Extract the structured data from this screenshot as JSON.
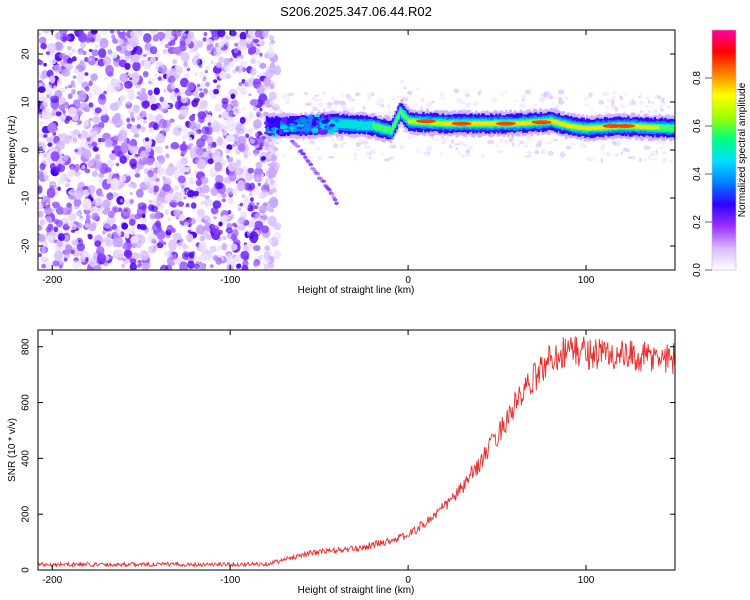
{
  "figure_title": "S206.2025.347.06.44.R02",
  "chart_data": [
    {
      "type": "heatmap",
      "xlabel": "Height of straight line (km)",
      "ylabel": "Frequency (Hz)",
      "xlim": [
        -208,
        150
      ],
      "ylim": [
        -25,
        25
      ],
      "xticks": [
        -200,
        -100,
        0,
        100
      ],
      "yticks": [
        -20,
        -10,
        0,
        10,
        20
      ],
      "colorbar": {
        "label": "Normalized spectral amplitude",
        "range": [
          0,
          1
        ],
        "ticks": [
          "0.0",
          "0.2",
          "0.4",
          "0.6",
          "0.8"
        ],
        "colors": [
          "#ffffff",
          "#d9b8ff",
          "#9b30ff",
          "#3000ff",
          "#0080ff",
          "#00e0ff",
          "#00ff80",
          "#a0ff00",
          "#ffff00",
          "#ff8000",
          "#ff0000",
          "#ff00a0"
        ]
      },
      "ridge": {
        "x": [
          -80,
          -60,
          -40,
          -20,
          -10,
          -5,
          0,
          20,
          40,
          60,
          80,
          90,
          100,
          120,
          150
        ],
        "freq_hz": [
          5,
          5,
          5.5,
          5,
          4,
          8,
          6,
          5.5,
          5.5,
          5.5,
          6,
          5,
          4.5,
          5,
          4.5
        ]
      },
      "branch": {
        "x": [
          -65,
          -55,
          -45,
          -40
        ],
        "freq_hz": [
          2,
          -3,
          -8,
          -11
        ]
      }
    },
    {
      "type": "line",
      "xlabel": "Height of straight line (km)",
      "ylabel": "SNR (10 * v/v)",
      "xlim": [
        -208,
        150
      ],
      "ylim": [
        0,
        860
      ],
      "xticks": [
        -200,
        -100,
        0,
        100
      ],
      "yticks": [
        0,
        200,
        400,
        600,
        800
      ],
      "series": [
        {
          "name": "SNR",
          "color": "#e83030",
          "x": [
            -208,
            -160,
            -120,
            -90,
            -80,
            -70,
            -60,
            -50,
            -40,
            -30,
            -20,
            -10,
            0,
            10,
            20,
            30,
            40,
            50,
            60,
            70,
            80,
            90,
            100,
            110,
            120,
            130,
            140,
            150
          ],
          "y": [
            20,
            20,
            20,
            20,
            22,
            35,
            55,
            65,
            70,
            75,
            90,
            105,
            125,
            170,
            225,
            290,
            380,
            480,
            590,
            680,
            760,
            790,
            780,
            775,
            765,
            760,
            760,
            760
          ]
        }
      ]
    }
  ]
}
